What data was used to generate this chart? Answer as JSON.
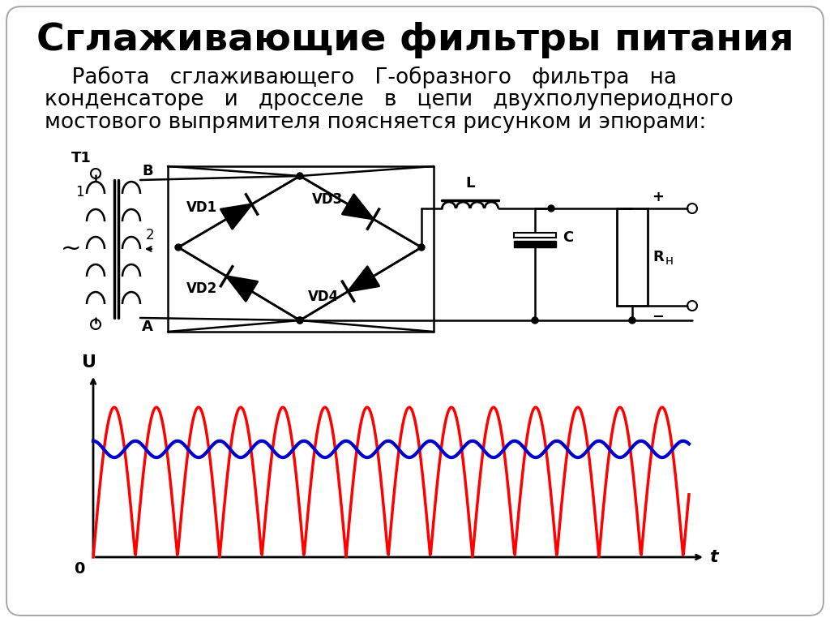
{
  "title": "Сглаживающие фильтры питания",
  "body_lines": [
    "    Работа   сглаживающего   Г-образного   фильтра   на",
    "конденсаторе   и   дросселе   в   цепи   двухполупериодного",
    "мостового выпрямителя поясняется рисунком и эпюрами:"
  ],
  "background_color": "#ffffff",
  "title_fontsize": 34,
  "body_fontsize": 19,
  "black_color": "#000000",
  "red_color": "#ff0000",
  "blue_color": "#0000cc"
}
